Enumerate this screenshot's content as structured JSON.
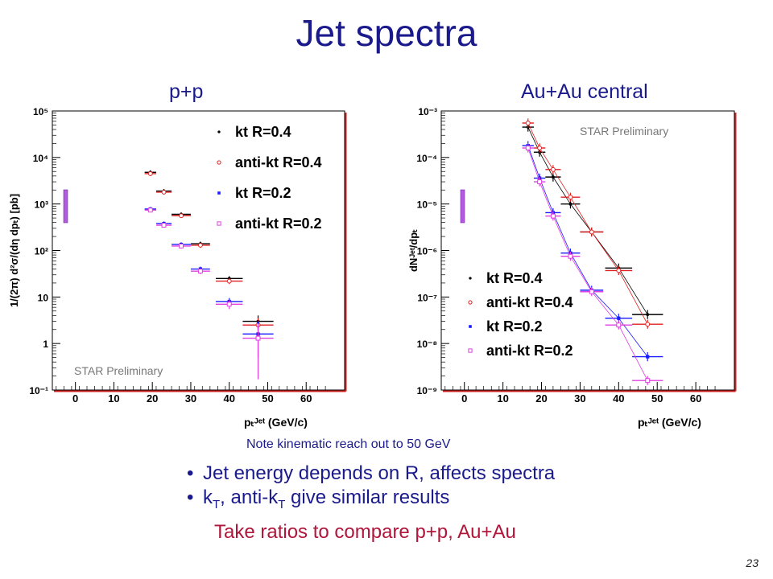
{
  "slide": {
    "title": "Jet spectra",
    "note": "Note kinematic reach out to 50 GeV",
    "bullet1": "Jet energy depends on R, affects spectra",
    "bullet2_a": "k",
    "bullet2_sub1": "T",
    "bullet2_b": ", anti-k",
    "bullet2_sub2": "T",
    "bullet2_c": " give similar results",
    "ratio_text": "Take ratios to compare p+p, Au+Au",
    "page_number": "23"
  },
  "chart_data": [
    {
      "type": "scatter",
      "title": "p+p",
      "watermark": "STAR Preliminary",
      "ylabel": "1/(2π) d²σ/(dη dpₜ) [pb]",
      "xlabel": "pₜᴶᵉᵗ (GeV/c)",
      "xlim": [
        -6,
        70
      ],
      "ylog": true,
      "ylim": [
        0.1,
        100000
      ],
      "xticks": [
        0,
        10,
        20,
        30,
        40,
        50,
        60
      ],
      "yticks": [
        {
          "v": 0.1,
          "label": "10⁻¹"
        },
        {
          "v": 1,
          "label": "1"
        },
        {
          "v": 10,
          "label": "10"
        },
        {
          "v": 100,
          "label": "10²"
        },
        {
          "v": 1000,
          "label": "10³"
        },
        {
          "v": 10000,
          "label": "10⁴"
        },
        {
          "v": 100000,
          "label": "10⁵"
        }
      ],
      "legend_position": "top-right",
      "series": [
        {
          "name": "kt R=0.4",
          "color": "#000000",
          "marker": "dot",
          "x": [
            19.5,
            23,
            27.5,
            32.5,
            40,
            47.5
          ],
          "xerr": [
            1.5,
            2,
            2.5,
            2.5,
            3.5,
            4
          ],
          "y": [
            4800,
            1900,
            600,
            140,
            25,
            3.0
          ],
          "ylo": [
            4300,
            1700,
            540,
            125,
            22,
            2.0
          ],
          "yhi": [
            5300,
            2100,
            660,
            155,
            28,
            4.0
          ]
        },
        {
          "name": "anti-kt R=0.4",
          "color": "#e02020",
          "marker": "open-circle",
          "x": [
            19.5,
            23,
            27.5,
            32.5,
            40,
            47.5
          ],
          "xerr": [
            1.5,
            2,
            2.5,
            2.5,
            3.5,
            4
          ],
          "y": [
            4500,
            1800,
            560,
            130,
            22,
            2.5
          ],
          "ylo": [
            4000,
            1600,
            500,
            115,
            19,
            1.5
          ],
          "yhi": [
            5000,
            2000,
            620,
            145,
            25,
            3.5
          ]
        },
        {
          "name": "kt R=0.2",
          "color": "#1a1aff",
          "marker": "square",
          "x": [
            19.5,
            23,
            27.5,
            32.5,
            40,
            47.5
          ],
          "xerr": [
            1.5,
            2,
            2.5,
            2.5,
            3.5,
            4
          ],
          "y": [
            780,
            380,
            135,
            40,
            8,
            1.6
          ],
          "ylo": [
            700,
            340,
            120,
            35,
            6.5,
            0.5
          ],
          "yhi": [
            860,
            420,
            150,
            45,
            9.5,
            3.0
          ]
        },
        {
          "name": "anti-kt R=0.2",
          "color": "#e040e0",
          "marker": "open-square",
          "x": [
            19.5,
            23,
            27.5,
            32.5,
            40,
            47.5
          ],
          "xerr": [
            1.5,
            2,
            2.5,
            2.5,
            3.5,
            4
          ],
          "y": [
            740,
            350,
            125,
            36,
            7,
            1.3
          ],
          "ylo": [
            660,
            310,
            110,
            31,
            5.5,
            0.17
          ],
          "yhi": [
            820,
            390,
            140,
            41,
            8.5,
            2.6
          ]
        }
      ]
    },
    {
      "type": "line",
      "title": "Au+Au central",
      "watermark": "STAR Preliminary",
      "ylabel": "dNᴶᵉᵗ/dpₜ",
      "xlabel": "pₜᴶᵉᵗ (GeV/c)",
      "xlim": [
        -6,
        70
      ],
      "ylog": true,
      "ylim": [
        1e-09,
        0.001
      ],
      "xticks": [
        0,
        10,
        20,
        30,
        40,
        50,
        60
      ],
      "yticks": [
        {
          "v": 1e-09,
          "label": "10⁻⁹"
        },
        {
          "v": 1e-08,
          "label": "10⁻⁸"
        },
        {
          "v": 1e-07,
          "label": "10⁻⁷"
        },
        {
          "v": 1e-06,
          "label": "10⁻⁶"
        },
        {
          "v": 1e-05,
          "label": "10⁻⁵"
        },
        {
          "v": 0.0001,
          "label": "10⁻⁴"
        },
        {
          "v": 0.001,
          "label": "10⁻³"
        }
      ],
      "legend_position": "bottom-right",
      "series": [
        {
          "name": "kt R=0.4",
          "color": "#000000",
          "marker": "dot",
          "x": [
            16.5,
            19.5,
            23,
            27.5,
            33,
            40,
            47.5
          ],
          "xerr": [
            1.5,
            1.5,
            2,
            2.5,
            3,
            3.5,
            4
          ],
          "y": [
            0.00045,
            0.00013,
            3.8e-05,
            1e-05,
            2.5e-06,
            4.2e-07,
            4.2e-08
          ]
        },
        {
          "name": "anti-kt R=0.4",
          "color": "#e02020",
          "marker": "open-circle",
          "x": [
            16.5,
            19.5,
            23,
            27.5,
            33,
            40,
            47.5
          ],
          "xerr": [
            1.5,
            1.5,
            2,
            2.5,
            3,
            3.5,
            4
          ],
          "y": [
            0.00055,
            0.00016,
            5.5e-05,
            1.4e-05,
            2.5e-06,
            3.7e-07,
            2.6e-08
          ]
        },
        {
          "name": "kt R=0.2",
          "color": "#1a1aff",
          "marker": "square",
          "x": [
            16.5,
            19.5,
            23,
            27.5,
            33,
            40,
            47.5
          ],
          "xerr": [
            1.5,
            1.5,
            2,
            2.5,
            3,
            3.5,
            4
          ],
          "y": [
            0.00018,
            3.6e-05,
            6.5e-06,
            8.8e-07,
            1.4e-07,
            3.5e-08,
            5.2e-09
          ]
        },
        {
          "name": "anti-kt R=0.2",
          "color": "#e040e0",
          "marker": "open-square",
          "x": [
            16.5,
            19.5,
            23,
            27.5,
            33,
            40,
            47.5
          ],
          "xerr": [
            1.5,
            1.5,
            2,
            2.5,
            3,
            3.5,
            4
          ],
          "y": [
            0.00016,
            3e-05,
            5.5e-06,
            7.5e-07,
            1.3e-07,
            2.5e-08,
            1.6e-09
          ]
        }
      ]
    }
  ]
}
